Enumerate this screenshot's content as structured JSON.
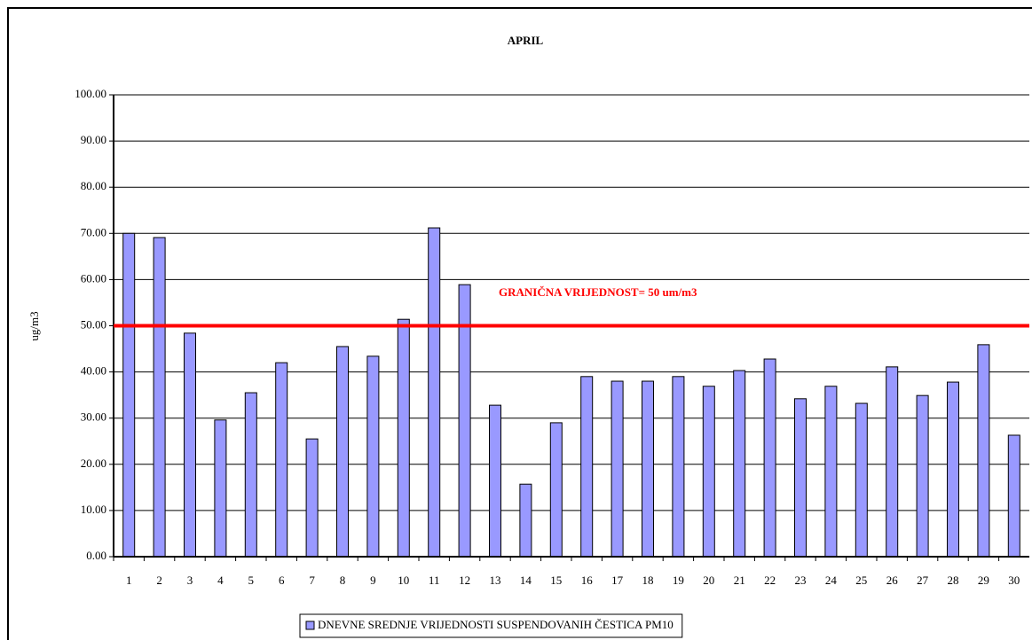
{
  "chart_data": {
    "type": "bar",
    "title": "APRIL",
    "y_label": "ug/m3",
    "categories": [
      "1",
      "2",
      "3",
      "4",
      "5",
      "6",
      "7",
      "8",
      "9",
      "10",
      "11",
      "12",
      "13",
      "14",
      "15",
      "16",
      "17",
      "18",
      "19",
      "20",
      "21",
      "22",
      "23",
      "24",
      "25",
      "26",
      "27",
      "28",
      "29",
      "30"
    ],
    "series": [
      {
        "name": "DNEVNE SREDNJE VRIJEDNOSTI SUSPENDOVANIH ČESTICA PM10",
        "color": "#9999ff",
        "values": [
          70.0,
          69.1,
          48.4,
          29.6,
          35.5,
          42.0,
          25.5,
          45.5,
          43.4,
          51.4,
          71.2,
          58.9,
          32.8,
          15.7,
          29.0,
          39.0,
          38.0,
          38.0,
          39.0,
          36.9,
          40.3,
          42.8,
          34.2,
          36.9,
          33.2,
          41.1,
          34.9,
          37.8,
          45.9,
          26.3
        ]
      }
    ],
    "ylim": [
      0,
      100
    ],
    "yticks": [
      {
        "value": 0,
        "label": "0.00"
      },
      {
        "value": 10,
        "label": "10.00"
      },
      {
        "value": 20,
        "label": "20.00"
      },
      {
        "value": 30,
        "label": "30.00"
      },
      {
        "value": 40,
        "label": "40.00"
      },
      {
        "value": 50,
        "label": "50.00"
      },
      {
        "value": 60,
        "label": "60.00"
      },
      {
        "value": 70,
        "label": "70.00"
      },
      {
        "value": 80,
        "label": "80.00"
      },
      {
        "value": 90,
        "label": "90.00"
      },
      {
        "value": 100,
        "label": "100.00"
      }
    ],
    "grid": true,
    "legend": "bottom",
    "threshold": {
      "value": 50,
      "label": "GRANIČNA VRIJEDNOST= 50 um/m3",
      "color": "#ff0000"
    }
  }
}
